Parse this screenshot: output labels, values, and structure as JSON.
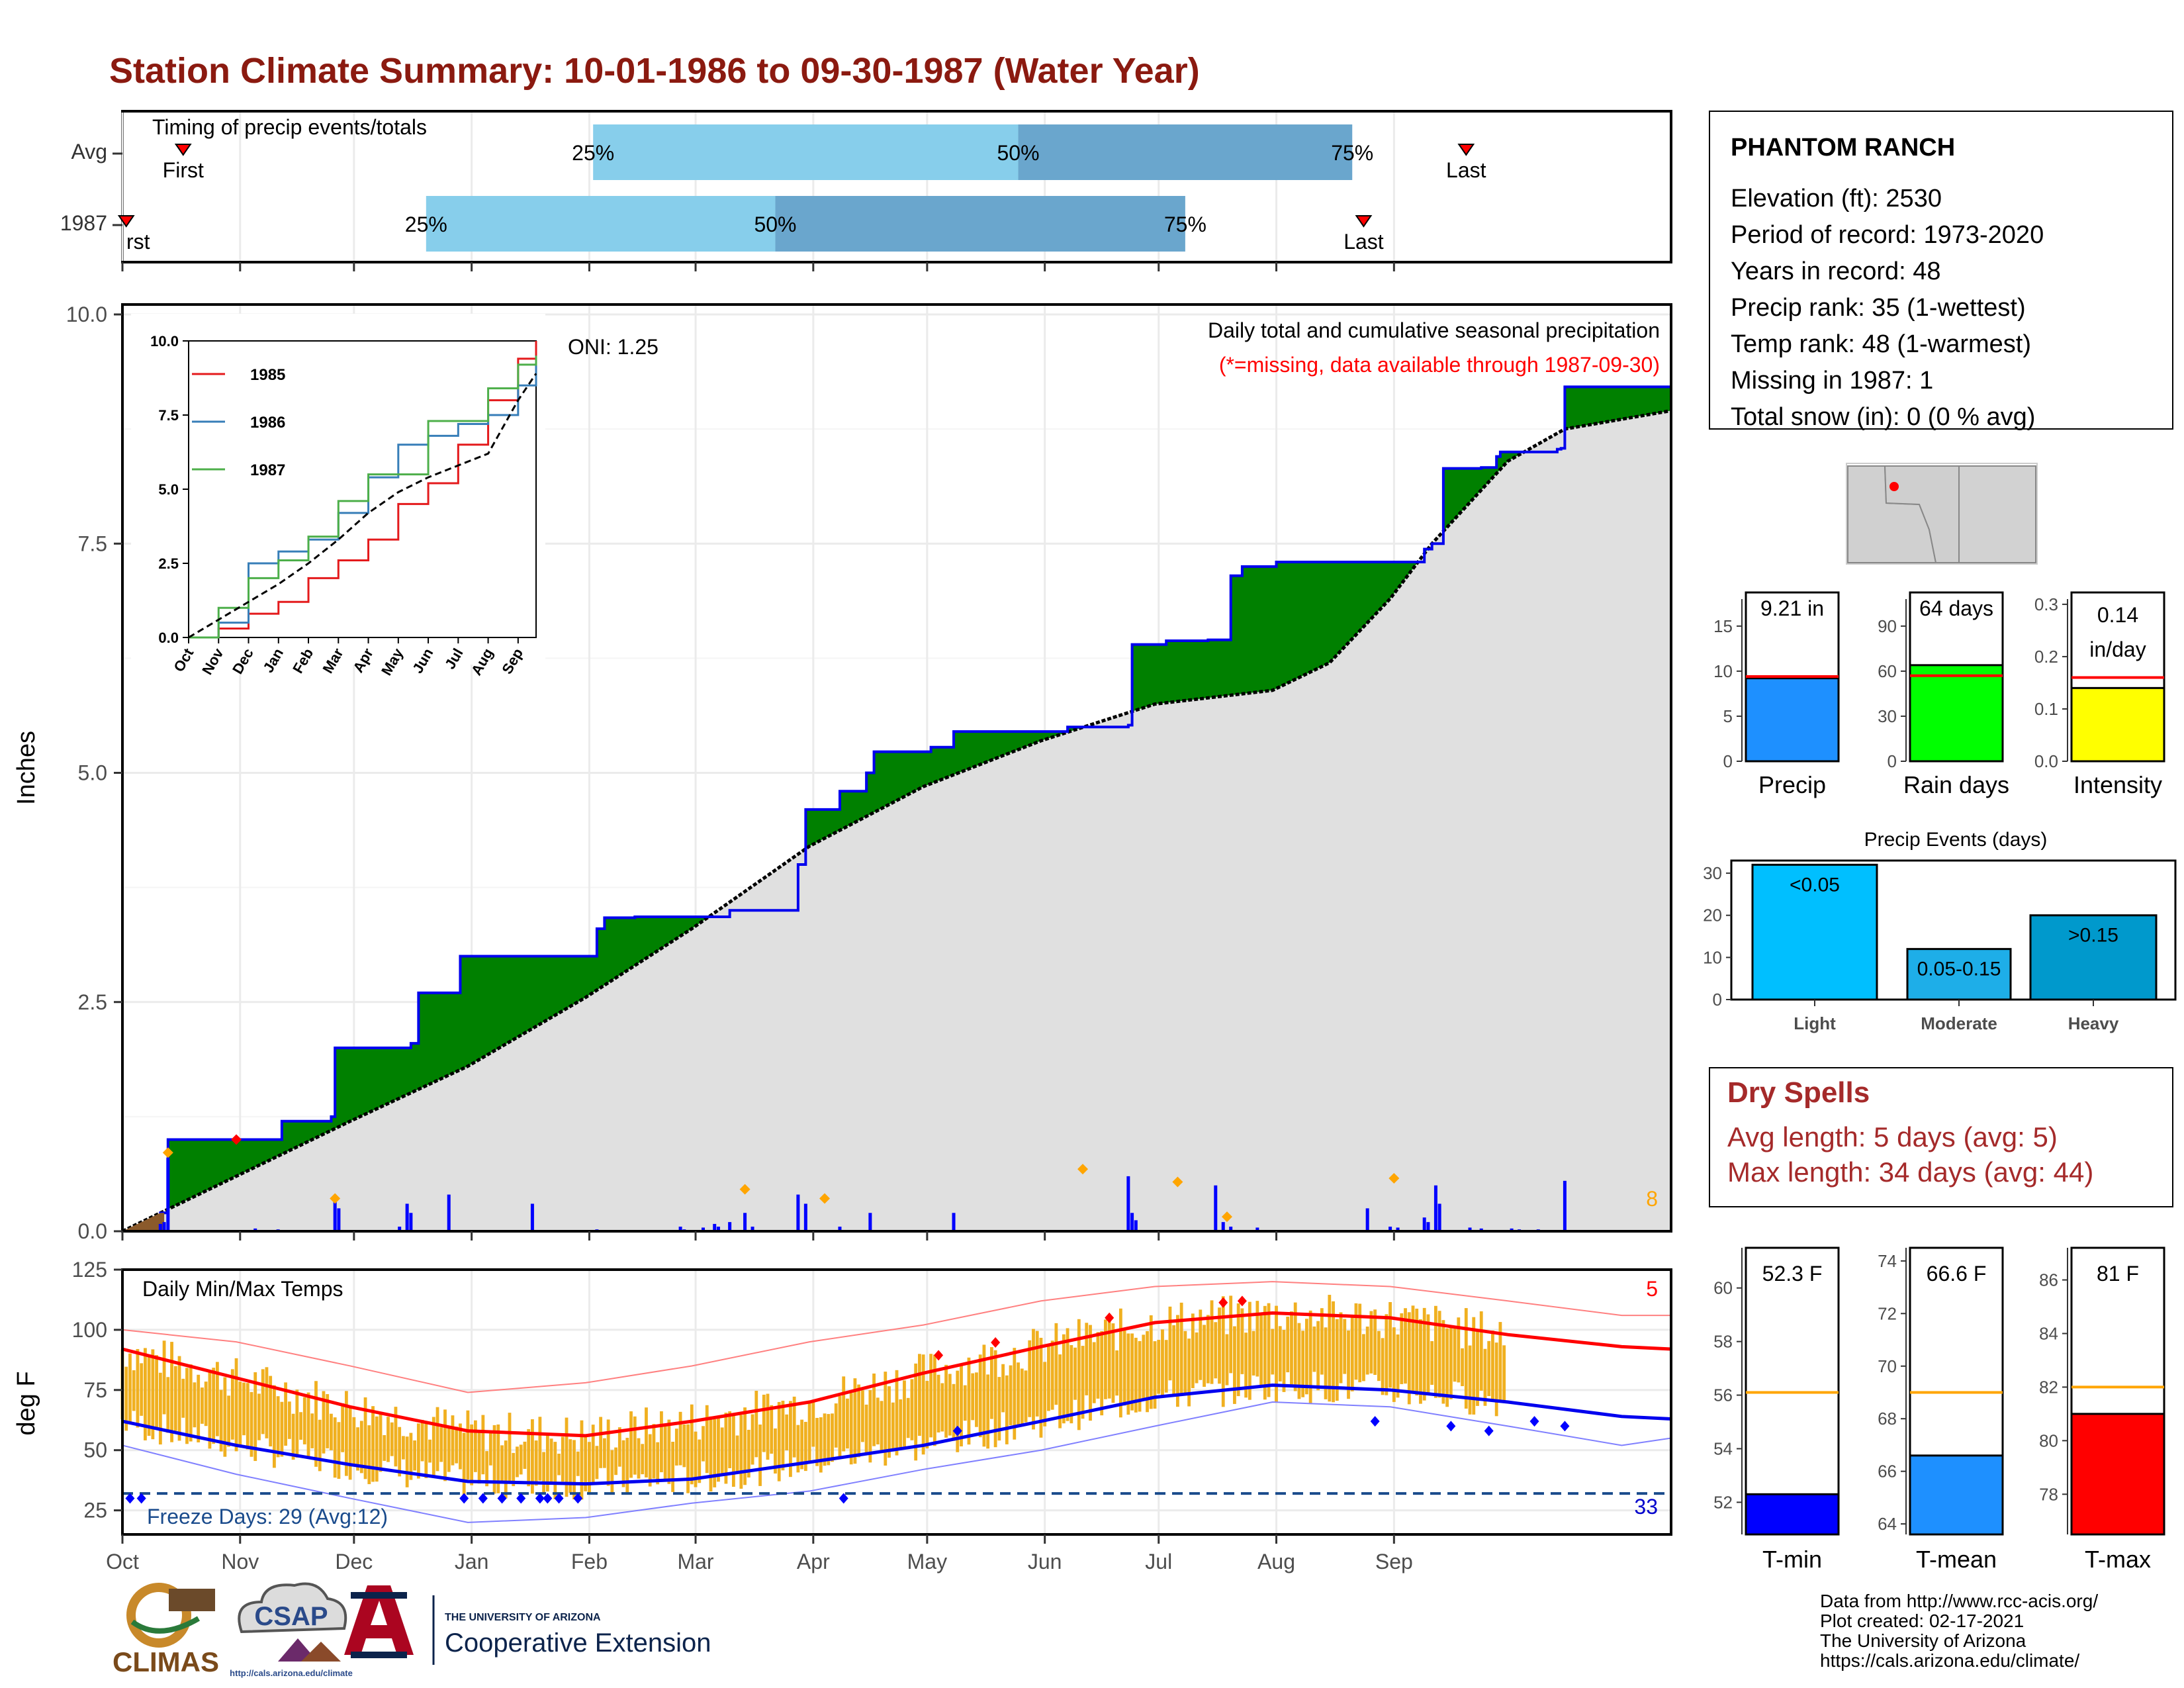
{
  "title": "Station Climate Summary: 10-01-1986 to 09-30-1987 (Water Year)",
  "colors": {
    "title": "#8b1a10",
    "green": "#008000",
    "blue_line": "#0000ee",
    "gray_fill": "#e0e0e0",
    "light_blue": "#87ceeb",
    "mid_blue": "#6aa6cd",
    "orange": "#f0b020",
    "red": "#ff0000",
    "dry_red": "#a52a2a"
  },
  "months": [
    "Oct",
    "Nov",
    "Dec",
    "Jan",
    "Feb",
    "Mar",
    "Apr",
    "May",
    "Jun",
    "Jul",
    "Aug",
    "Sep"
  ],
  "timing_panel": {
    "label": "Timing of precip events/totals",
    "rows": [
      {
        "label": "Avg",
        "first": "First",
        "last": "Last",
        "first_day": 16,
        "last_day": 354,
        "q25": [
          124,
          "25%"
        ],
        "q50": [
          236,
          "50%"
        ],
        "q75": [
          324,
          "75%"
        ]
      },
      {
        "label": "1987",
        "first": "rst",
        "last": "Last",
        "first_day": 1,
        "last_day": 327,
        "q25": [
          80,
          "25%"
        ],
        "q50": [
          172,
          "50%"
        ],
        "q75": [
          280,
          "75%"
        ]
      }
    ]
  },
  "station": {
    "name": "PHANTOM RANCH",
    "lines": [
      "Elevation (ft): 2530",
      "Period of record: 1973-2020",
      "Years in record: 48",
      "Precip rank: 35 (1-wettest)",
      "Temp rank: 48 (1-warmest)",
      "Missing in 1987: 1",
      "Total snow (in): 0 (0 % avg)"
    ]
  },
  "precip_panel": {
    "ylabel": "Inches",
    "yticks": [
      "0.0",
      "2.5",
      "5.0",
      "7.5",
      "10.0"
    ],
    "ylim": [
      0,
      10
    ],
    "caption1": "Daily total and cumulative seasonal precipitation",
    "caption2": "(*=missing, data available through 1987-09-30)",
    "oni": "ONI: 1.25",
    "count_label": "8",
    "cumulative_steps": [
      {
        "day": 0,
        "value": 0.0
      },
      {
        "day": 10,
        "value": 0.2
      },
      {
        "day": 12,
        "value": 1.0
      },
      {
        "day": 30,
        "value": 1.0
      },
      {
        "day": 42,
        "value": 1.2
      },
      {
        "day": 55,
        "value": 1.25
      },
      {
        "day": 56,
        "value": 2.0
      },
      {
        "day": 76,
        "value": 2.05
      },
      {
        "day": 78,
        "value": 2.6
      },
      {
        "day": 89,
        "value": 3.0
      },
      {
        "day": 125,
        "value": 3.3
      },
      {
        "day": 127,
        "value": 3.42
      },
      {
        "day": 135,
        "value": 3.43
      },
      {
        "day": 160,
        "value": 3.5
      },
      {
        "day": 178,
        "value": 4.0
      },
      {
        "day": 180,
        "value": 4.6
      },
      {
        "day": 189,
        "value": 4.8
      },
      {
        "day": 196,
        "value": 5.0
      },
      {
        "day": 198,
        "value": 5.23
      },
      {
        "day": 213,
        "value": 5.28
      },
      {
        "day": 219,
        "value": 5.45
      },
      {
        "day": 249,
        "value": 5.5
      },
      {
        "day": 265,
        "value": 5.52
      },
      {
        "day": 266,
        "value": 6.4
      },
      {
        "day": 275,
        "value": 6.44
      },
      {
        "day": 286,
        "value": 6.45
      },
      {
        "day": 292,
        "value": 7.15
      },
      {
        "day": 295,
        "value": 7.25
      },
      {
        "day": 304,
        "value": 7.3
      },
      {
        "day": 341,
        "value": 7.3
      },
      {
        "day": 343,
        "value": 7.44
      },
      {
        "day": 345,
        "value": 7.5
      },
      {
        "day": 348,
        "value": 8.32
      },
      {
        "day": 358,
        "value": 8.33
      },
      {
        "day": 362,
        "value": 8.45
      },
      {
        "day": 363,
        "value": 8.5
      },
      {
        "day": 378,
        "value": 8.53
      },
      {
        "day": 379,
        "value": 8.54
      },
      {
        "day": 380,
        "value": 9.21
      },
      {
        "day": 408,
        "value": 9.21
      }
    ],
    "average_cumulative": [
      {
        "day": 0,
        "value": 0.0
      },
      {
        "day": 30,
        "value": 0.6
      },
      {
        "day": 60,
        "value": 1.2
      },
      {
        "day": 91,
        "value": 1.8
      },
      {
        "day": 122,
        "value": 2.55
      },
      {
        "day": 150,
        "value": 3.3
      },
      {
        "day": 181,
        "value": 4.2
      },
      {
        "day": 211,
        "value": 4.85
      },
      {
        "day": 242,
        "value": 5.35
      },
      {
        "day": 272,
        "value": 5.75
      },
      {
        "day": 303,
        "value": 5.9
      },
      {
        "day": 318,
        "value": 6.2
      },
      {
        "day": 334,
        "value": 6.9
      },
      {
        "day": 345,
        "value": 7.5
      },
      {
        "day": 365,
        "value": 8.4
      },
      {
        "day": 380,
        "value": 8.75
      },
      {
        "day": 408,
        "value": 8.95
      }
    ],
    "daily_bars": [
      [
        10,
        0.08
      ],
      [
        11,
        0.1
      ],
      [
        12,
        0.8
      ],
      [
        35,
        0.03
      ],
      [
        41,
        0.02
      ],
      [
        56,
        0.35
      ],
      [
        57,
        0.25
      ],
      [
        73,
        0.05
      ],
      [
        75,
        0.3
      ],
      [
        76,
        0.2
      ],
      [
        86,
        0.4
      ],
      [
        108,
        0.3
      ],
      [
        125,
        0.02
      ],
      [
        135,
        0.01
      ],
      [
        147,
        0.05
      ],
      [
        148,
        0.02
      ],
      [
        153,
        0.04
      ],
      [
        156,
        0.08
      ],
      [
        157,
        0.05
      ],
      [
        160,
        0.1
      ],
      [
        164,
        0.2
      ],
      [
        166,
        0.05
      ],
      [
        178,
        0.4
      ],
      [
        180,
        0.3
      ],
      [
        189,
        0.05
      ],
      [
        197,
        0.2
      ],
      [
        219,
        0.2
      ],
      [
        265,
        0.6
      ],
      [
        266,
        0.2
      ],
      [
        267,
        0.12
      ],
      [
        288,
        0.5
      ],
      [
        290,
        0.1
      ],
      [
        292,
        0.05
      ],
      [
        299,
        0.04
      ],
      [
        328,
        0.25
      ],
      [
        334,
        0.05
      ],
      [
        336,
        0.04
      ],
      [
        343,
        0.15
      ],
      [
        344,
        0.1
      ],
      [
        346,
        0.5
      ],
      [
        347,
        0.3
      ],
      [
        355,
        0.04
      ],
      [
        358,
        0.03
      ],
      [
        366,
        0.03
      ],
      [
        368,
        0.02
      ],
      [
        373,
        0.02
      ],
      [
        378,
        0.01
      ],
      [
        380,
        0.55
      ]
    ],
    "markers_orange": [
      [
        12,
        0.8
      ],
      [
        56,
        0.3
      ],
      [
        164,
        0.4
      ],
      [
        185,
        0.3
      ],
      [
        253,
        0.62
      ],
      [
        278,
        0.48
      ],
      [
        291,
        0.1
      ],
      [
        335,
        0.52
      ]
    ],
    "markers_red": [
      [
        30,
        1.0
      ]
    ]
  },
  "inset": {
    "yticks": [
      "0.0",
      "2.5",
      "5.0",
      "7.5",
      "10.0"
    ],
    "ylim": [
      0,
      10
    ],
    "legend": [
      {
        "name": "1985",
        "color": "#e41a1c"
      },
      {
        "name": "1986",
        "color": "#377eb8"
      },
      {
        "name": "1987",
        "color": "#4daf4a"
      }
    ],
    "series": {
      "1985": [
        [
          0,
          0
        ],
        [
          1,
          0.3
        ],
        [
          2,
          0.8
        ],
        [
          3,
          1.2
        ],
        [
          4,
          2.0
        ],
        [
          5,
          2.6
        ],
        [
          6,
          3.3
        ],
        [
          7,
          4.5
        ],
        [
          8,
          5.2
        ],
        [
          9,
          6.5
        ],
        [
          10,
          8.0
        ],
        [
          11,
          9.4
        ],
        [
          11.6,
          10.0
        ]
      ],
      "1986": [
        [
          0,
          0
        ],
        [
          1,
          0.5
        ],
        [
          2,
          2.5
        ],
        [
          3,
          2.9
        ],
        [
          4,
          3.3
        ],
        [
          5,
          4.2
        ],
        [
          6,
          5.4
        ],
        [
          7,
          6.5
        ],
        [
          8,
          6.8
        ],
        [
          9,
          7.2
        ],
        [
          10,
          7.5
        ],
        [
          11,
          8.5
        ],
        [
          11.6,
          9.5
        ]
      ],
      "1987": [
        [
          0,
          0
        ],
        [
          1,
          1.0
        ],
        [
          2,
          2.0
        ],
        [
          3,
          2.6
        ],
        [
          4,
          3.4
        ],
        [
          5,
          4.6
        ],
        [
          6,
          5.5
        ],
        [
          7,
          5.5
        ],
        [
          8,
          7.3
        ],
        [
          9,
          7.3
        ],
        [
          10,
          8.4
        ],
        [
          11,
          9.2
        ],
        [
          11.6,
          9.5
        ]
      ],
      "avg": [
        [
          0,
          0
        ],
        [
          1,
          0.6
        ],
        [
          2,
          1.2
        ],
        [
          3,
          1.8
        ],
        [
          4,
          2.5
        ],
        [
          5,
          3.3
        ],
        [
          6,
          4.2
        ],
        [
          7,
          4.9
        ],
        [
          8,
          5.4
        ],
        [
          9,
          5.8
        ],
        [
          10,
          6.2
        ],
        [
          11,
          8.0
        ],
        [
          11.6,
          8.9
        ]
      ]
    }
  },
  "temp_panel": {
    "title": "Daily Min/Max Temps",
    "ylabel": "deg F",
    "yticks": [
      "25",
      "50",
      "75",
      "100",
      "125"
    ],
    "ylim": [
      15,
      125
    ],
    "freeze_label": "Freeze Days: 29 (Avg:12)",
    "freeze_count_label": "33",
    "hot_count_label": "5",
    "avg_max": [
      [
        0,
        92
      ],
      [
        30,
        80
      ],
      [
        60,
        68
      ],
      [
        91,
        58
      ],
      [
        122,
        56
      ],
      [
        150,
        62
      ],
      [
        181,
        70
      ],
      [
        211,
        82
      ],
      [
        242,
        93
      ],
      [
        272,
        103
      ],
      [
        303,
        107
      ],
      [
        334,
        105
      ],
      [
        365,
        98
      ],
      [
        395,
        93
      ],
      [
        408,
        92
      ]
    ],
    "avg_min": [
      [
        0,
        62
      ],
      [
        30,
        52
      ],
      [
        60,
        44
      ],
      [
        91,
        37
      ],
      [
        122,
        36
      ],
      [
        150,
        38
      ],
      [
        181,
        45
      ],
      [
        211,
        52
      ],
      [
        242,
        62
      ],
      [
        272,
        72
      ],
      [
        303,
        77
      ],
      [
        334,
        75
      ],
      [
        365,
        70
      ],
      [
        395,
        64
      ],
      [
        408,
        63
      ]
    ],
    "record_max": [
      [
        0,
        100
      ],
      [
        30,
        95
      ],
      [
        60,
        85
      ],
      [
        91,
        74
      ],
      [
        122,
        78
      ],
      [
        150,
        85
      ],
      [
        181,
        95
      ],
      [
        211,
        102
      ],
      [
        242,
        112
      ],
      [
        272,
        118
      ],
      [
        303,
        120
      ],
      [
        334,
        118
      ],
      [
        365,
        112
      ],
      [
        395,
        106
      ],
      [
        408,
        106
      ]
    ],
    "record_min": [
      [
        0,
        52
      ],
      [
        30,
        40
      ],
      [
        60,
        30
      ],
      [
        91,
        20
      ],
      [
        122,
        22
      ],
      [
        150,
        28
      ],
      [
        181,
        33
      ],
      [
        211,
        42
      ],
      [
        242,
        50
      ],
      [
        272,
        60
      ],
      [
        303,
        70
      ],
      [
        334,
        68
      ],
      [
        365,
        60
      ],
      [
        395,
        52
      ],
      [
        408,
        55
      ]
    ]
  },
  "bar_panels": {
    "precip": {
      "label": "Precip",
      "value_label": "9.21 in",
      "value": 9.21,
      "avg": 9.4,
      "ylim": [
        0,
        18
      ],
      "yticks": [
        "0",
        "5",
        "10",
        "15"
      ],
      "tick_vals": [
        0,
        5,
        10,
        15
      ],
      "color": "#1e90ff"
    },
    "rain_days": {
      "label": "Rain days",
      "value_label": "64 days",
      "value": 64,
      "avg": 57,
      "ylim": [
        0,
        108
      ],
      "yticks": [
        "0",
        "30",
        "60",
        "90"
      ],
      "tick_vals": [
        0,
        30,
        60,
        90
      ],
      "color": "#00ff00"
    },
    "intensity": {
      "label": "Intensity",
      "value_label": "0.14",
      "value_label2": "in/day",
      "value": 0.14,
      "avg": 0.16,
      "ylim": [
        0,
        0.31
      ],
      "yticks": [
        "0.0",
        "0.1",
        "0.2",
        "0.3"
      ],
      "tick_vals": [
        0,
        0.1,
        0.2,
        0.3
      ],
      "color": "#ffff00"
    }
  },
  "events": {
    "title": "Precip Events (days)",
    "yticks": [
      "0",
      "10",
      "20",
      "30"
    ],
    "ylim": [
      0,
      33
    ],
    "bars": [
      {
        "category": "Light",
        "label": "<0.05",
        "value": 32,
        "color": "#00bfff"
      },
      {
        "category": "Moderate",
        "label": "0.05-0.15",
        "value": 12,
        "color": "#1eaee8"
      },
      {
        "category": "Heavy",
        "label": ">0.15",
        "value": 20,
        "color": "#0099cc"
      }
    ]
  },
  "dry_spells": {
    "title": "Dry Spells",
    "avg_line": "Avg length: 5 days (avg: 5)",
    "max_line": "Max length: 34 days (avg: 44)"
  },
  "temp_bars": {
    "tmin": {
      "label": "T-min",
      "value_label": "52.3 F",
      "value": 52.3,
      "avg": 56.1,
      "ylim": [
        50.8,
        61.5
      ],
      "yticks": [
        "52",
        "54",
        "56",
        "58",
        "60"
      ],
      "tick_vals": [
        52,
        54,
        56,
        58,
        60
      ],
      "color": "#0000ff"
    },
    "tmean": {
      "label": "T-mean",
      "value_label": "66.6 F",
      "value": 66.6,
      "avg": 69.0,
      "ylim": [
        63.6,
        74.5
      ],
      "yticks": [
        "64",
        "66",
        "68",
        "70",
        "72",
        "74"
      ],
      "tick_vals": [
        64,
        66,
        68,
        70,
        72,
        74
      ],
      "color": "#1e90ff"
    },
    "tmax": {
      "label": "T-max",
      "value_label": "81 F",
      "value": 81,
      "avg": 82,
      "ylim": [
        76.5,
        87.2
      ],
      "yticks": [
        "78",
        "80",
        "82",
        "84",
        "86"
      ],
      "tick_vals": [
        78,
        80,
        82,
        84,
        86
      ],
      "color": "#ff0000"
    }
  },
  "footer": {
    "lines": [
      "Data from http://www.rcc-acis.org/",
      "Plot created: 02-17-2021",
      "The University of Arizona",
      "https://cals.arizona.edu/climate/"
    ],
    "climas": "CLIMAS",
    "csap": "CSAP",
    "csap_url": "http://cals.arizona.edu/climate",
    "ua_small": "THE UNIVERSITY OF ARIZONA",
    "ua_big": "Cooperative Extension"
  }
}
